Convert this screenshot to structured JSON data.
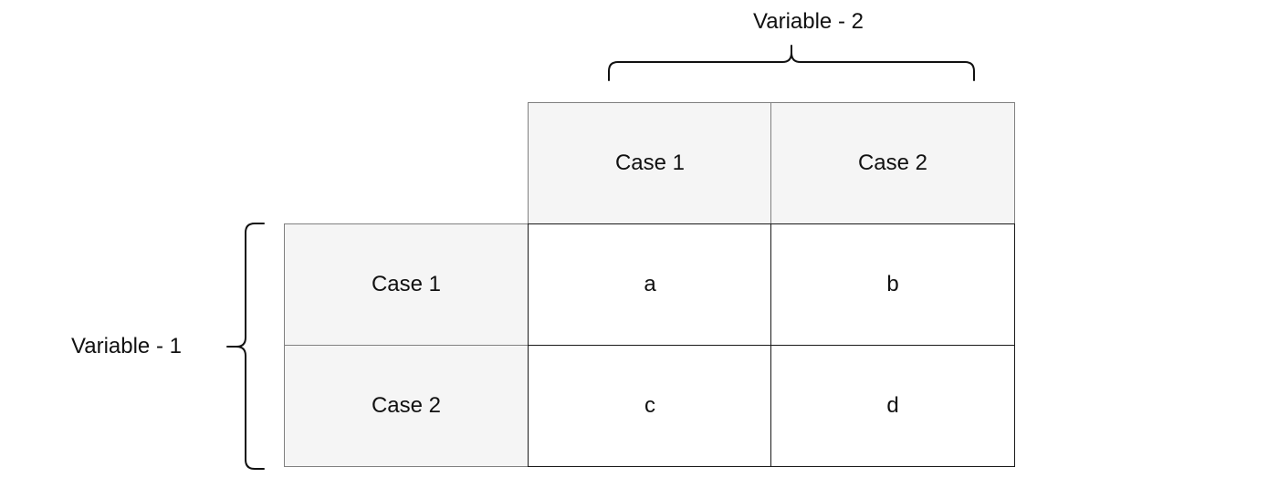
{
  "variable_2_label": "Variable - 2",
  "variable_1_label": "Variable - 1",
  "column_headers": [
    "Case 1",
    "Case 2"
  ],
  "row_headers": [
    "Case 1",
    "Case 2"
  ],
  "cells": [
    [
      "a",
      "b"
    ],
    [
      "c",
      "d"
    ]
  ],
  "colors": {
    "header_fill": "#f5f5f5",
    "cell_fill": "#ffffff",
    "line": "#111111"
  }
}
